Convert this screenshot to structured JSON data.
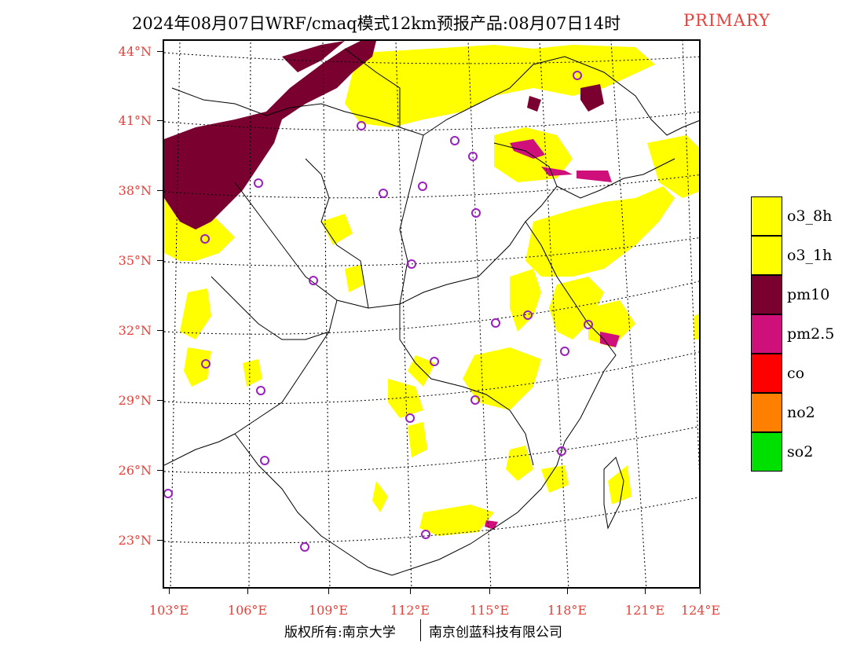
{
  "header": {
    "title": "2024年08月07日WRF/cmaq模式12km预报产品:08月07日14时",
    "product": "PRIMARY"
  },
  "map": {
    "lat_labels": [
      "44°N",
      "41°N",
      "38°N",
      "35°N",
      "32°N",
      "29°N",
      "26°N",
      "23°N"
    ],
    "lon_labels": [
      "103°E",
      "106°E",
      "109°E",
      "112°E",
      "115°E",
      "118°E",
      "121°E",
      "124°E"
    ],
    "colors": {
      "o3_8h": "#ffff00",
      "o3_1h": "#ffff00",
      "pm10": "#7a0030",
      "pm25": "#d0107a",
      "co": "#ff0000",
      "no2": "#ff8000",
      "so2": "#00e000",
      "station": "#9a20c0",
      "grid": "#000000",
      "boundary": "#000000"
    },
    "station_marker": "circle-icon"
  },
  "legend": {
    "items": [
      {
        "label": "o3_8h",
        "color": "#ffff00"
      },
      {
        "label": "o3_1h",
        "color": "#ffff00"
      },
      {
        "label": "pm10",
        "color": "#7a0030"
      },
      {
        "label": "pm2.5",
        "color": "#d0107a"
      },
      {
        "label": "co",
        "color": "#ff0000"
      },
      {
        "label": "no2",
        "color": "#ff8000"
      },
      {
        "label": "so2",
        "color": "#00e000"
      }
    ]
  },
  "footer": {
    "left": "版权所有:南京大学",
    "right": "南京创蓝科技有限公司"
  }
}
